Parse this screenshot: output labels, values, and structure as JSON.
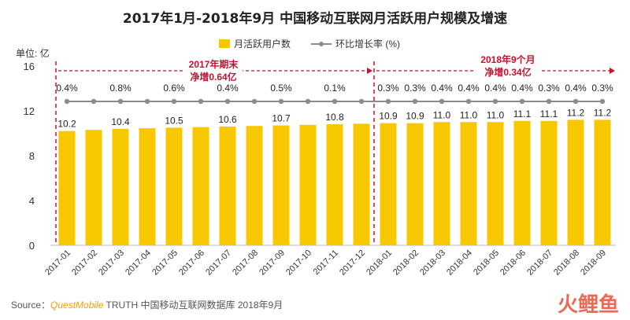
{
  "chart_data": {
    "type": "bar",
    "title": "2017年1月-2018年9月 中国移动互联网月活跃用户规模及增速",
    "ylabel": "单位: 亿",
    "ylim": [
      0,
      16
    ],
    "yticks": [
      "0",
      "4",
      "8",
      "12",
      "16"
    ],
    "categories": [
      "2017-01",
      "2017-02",
      "2017-03",
      "2017-04",
      "2017-05",
      "2017-06",
      "2017-07",
      "2017-08",
      "2017-09",
      "2017-10",
      "2017-11",
      "2017-12",
      "2018-01",
      "2018-02",
      "2018-03",
      "2018-04",
      "2018-05",
      "2018-06",
      "2018-07",
      "2018-08",
      "2018-09"
    ],
    "series": [
      {
        "name": "月活跃用户数",
        "values": [
          10.2,
          10.3,
          10.4,
          10.45,
          10.5,
          10.55,
          10.6,
          10.65,
          10.7,
          10.75,
          10.8,
          10.85,
          10.9,
          10.9,
          11.0,
          11.0,
          11.0,
          11.1,
          11.1,
          11.2,
          11.2
        ],
        "labels": [
          "10.2",
          "",
          "10.4",
          "",
          "10.5",
          "",
          "10.6",
          "",
          "10.7",
          "",
          "10.8",
          "",
          "10.9",
          "10.9",
          "11.0",
          "11.0",
          "11.0",
          "11.1",
          "11.1",
          "11.2",
          "11.2"
        ]
      },
      {
        "name": "环比增长率 (%)",
        "values": [
          0.4,
          null,
          0.8,
          null,
          0.6,
          null,
          0.4,
          null,
          0.5,
          null,
          0.1,
          null,
          0.3,
          0.3,
          0.4,
          0.4,
          0.4,
          0.4,
          0.3,
          0.4,
          0.3
        ],
        "labels": [
          "0.4%",
          "",
          "0.8%",
          "",
          "0.6%",
          "",
          "0.4%",
          "",
          "0.5%",
          "",
          "0.1%",
          "",
          "0.3%",
          "0.3%",
          "0.4%",
          "0.4%",
          "0.4%",
          "0.4%",
          "0.3%",
          "0.4%",
          "0.3%"
        ]
      }
    ],
    "legend": [
      "月活跃用户数",
      "环比增长率 (%)"
    ],
    "annotations": [
      {
        "line1": "2017年期末",
        "line2": "净增0.64亿"
      },
      {
        "line1": "2018年9个月",
        "line2": "净增0.34亿"
      }
    ],
    "colors": {
      "bar": "#f7c800",
      "line": "#8c8c8c",
      "annotation": "#c8102e",
      "divider": "#c8102e"
    }
  },
  "source": {
    "prefix": "Source：",
    "brand": "QuestMobile",
    "text": " TRUTH 中国移动互联网数据库 2018年9月"
  },
  "watermark": "火鲤鱼"
}
